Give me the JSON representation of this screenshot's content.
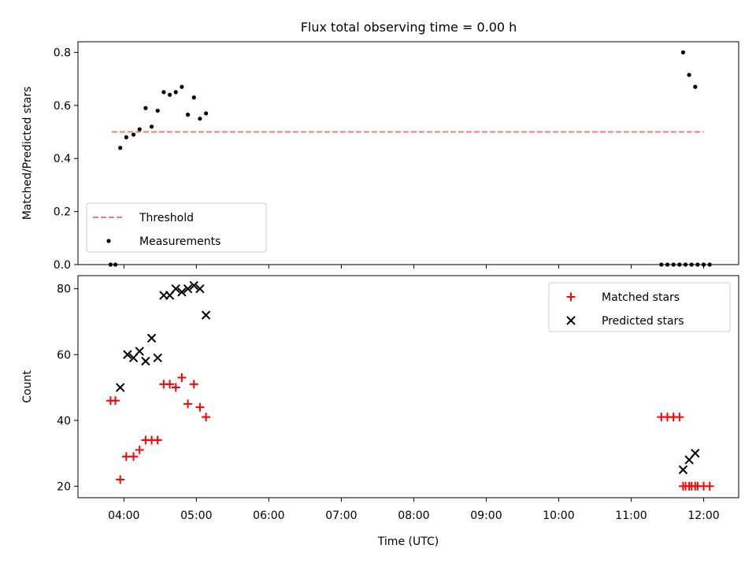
{
  "figure": {
    "title": "Flux total observing time = 0.00 h"
  },
  "chart_data": [
    {
      "type": "scatter",
      "xlabel": "",
      "ylabel": "Matched/Predicted stars",
      "xlim": [
        "03:22",
        "12:29"
      ],
      "ylim": [
        0,
        0.84
      ],
      "yticks": [
        0.0,
        0.2,
        0.4,
        0.6,
        0.8
      ],
      "ytick_labels": [
        "0.0",
        "0.2",
        "0.4",
        "0.6",
        "0.8"
      ],
      "grid": false,
      "legend_position": "lower-left",
      "series": [
        {
          "name": "Threshold",
          "kind": "dashed-line",
          "color": "#ff7777",
          "x": [
            "03:50",
            "12:00"
          ],
          "y": [
            0.5,
            0.5
          ]
        },
        {
          "name": "Measurements",
          "kind": "dot",
          "color": "#000000",
          "x": [
            "03:49",
            "03:53",
            "03:57",
            "04:02",
            "04:08",
            "04:13",
            "04:18",
            "04:23",
            "04:28",
            "04:33",
            "04:38",
            "04:43",
            "04:48",
            "04:53",
            "04:58",
            "05:03",
            "05:08",
            "11:25",
            "11:30",
            "11:35",
            "11:40",
            "11:45",
            "11:50",
            "11:55",
            "12:00",
            "12:05",
            "11:43",
            "11:48",
            "11:53"
          ],
          "y": [
            0.0,
            0.0,
            0.44,
            0.48,
            0.49,
            0.51,
            0.59,
            0.52,
            0.58,
            0.65,
            0.64,
            0.65,
            0.67,
            0.565,
            0.63,
            0.55,
            0.57,
            0.0,
            0.0,
            0.0,
            0.0,
            0.0,
            0.0,
            0.0,
            0.0,
            0.0,
            0.8,
            0.715,
            0.67
          ]
        }
      ]
    },
    {
      "type": "scatter",
      "xlabel": "Time (UTC)",
      "ylabel": "Count",
      "xlim": [
        "03:22",
        "12:29"
      ],
      "ylim": [
        16.5,
        84
      ],
      "xticks": [
        "04:00",
        "05:00",
        "06:00",
        "07:00",
        "08:00",
        "09:00",
        "10:00",
        "11:00",
        "12:00"
      ],
      "yticks": [
        20,
        40,
        60,
        80
      ],
      "ytick_labels": [
        "20",
        "40",
        "60",
        "80"
      ],
      "grid": false,
      "legend_position": "top-right",
      "series": [
        {
          "name": "Matched stars",
          "marker": "+",
          "color": "#ff0000",
          "x": [
            "03:49",
            "03:53",
            "03:57",
            "04:02",
            "04:08",
            "04:13",
            "04:18",
            "04:23",
            "04:28",
            "04:33",
            "04:38",
            "04:43",
            "04:48",
            "04:53",
            "04:58",
            "05:03",
            "05:08",
            "11:25",
            "11:30",
            "11:35",
            "11:40",
            "11:45",
            "11:50",
            "11:55",
            "12:00",
            "12:05",
            "11:43",
            "11:48",
            "11:53"
          ],
          "y": [
            46,
            46,
            22,
            29,
            29,
            31,
            34,
            34,
            34,
            51,
            51,
            50,
            53,
            45,
            51,
            44,
            41,
            41,
            41,
            41,
            41,
            20,
            20,
            20,
            20,
            20,
            20,
            20,
            20
          ]
        },
        {
          "name": "Predicted stars",
          "marker": "x",
          "color": "#000000",
          "x": [
            "03:57",
            "04:03",
            "04:08",
            "04:13",
            "04:18",
            "04:23",
            "04:28",
            "04:33",
            "04:38",
            "04:43",
            "04:48",
            "04:53",
            "04:58",
            "05:03",
            "05:08",
            "11:43",
            "11:48",
            "11:53"
          ],
          "y": [
            50,
            60,
            59,
            61,
            58,
            65,
            59,
            78,
            78,
            80,
            79,
            80,
            81,
            80,
            72,
            25,
            28,
            30
          ]
        }
      ]
    }
  ]
}
